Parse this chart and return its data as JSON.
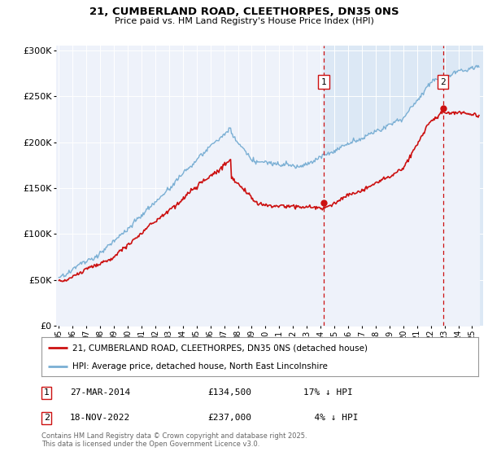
{
  "title_line1": "21, CUMBERLAND ROAD, CLEETHORPES, DN35 0NS",
  "title_line2": "Price paid vs. HM Land Registry's House Price Index (HPI)",
  "background_color": "#ffffff",
  "plot_bg_color": "#eef2fa",
  "plot_bg_color_shaded": "#dce8f5",
  "grid_color": "#ffffff",
  "hpi_line_color": "#7aafd4",
  "price_line_color": "#cc1111",
  "vline_color": "#cc1111",
  "marker1_date_x": 2014.23,
  "marker2_date_x": 2022.88,
  "marker1_price": 134500,
  "marker2_price": 237000,
  "legend_line1": "21, CUMBERLAND ROAD, CLEETHORPES, DN35 0NS (detached house)",
  "legend_line2": "HPI: Average price, detached house, North East Lincolnshire",
  "footer": "Contains HM Land Registry data © Crown copyright and database right 2025.\nThis data is licensed under the Open Government Licence v3.0.",
  "ylim": [
    0,
    305000
  ],
  "xlim_start": 1994.8,
  "xlim_end": 2025.8
}
